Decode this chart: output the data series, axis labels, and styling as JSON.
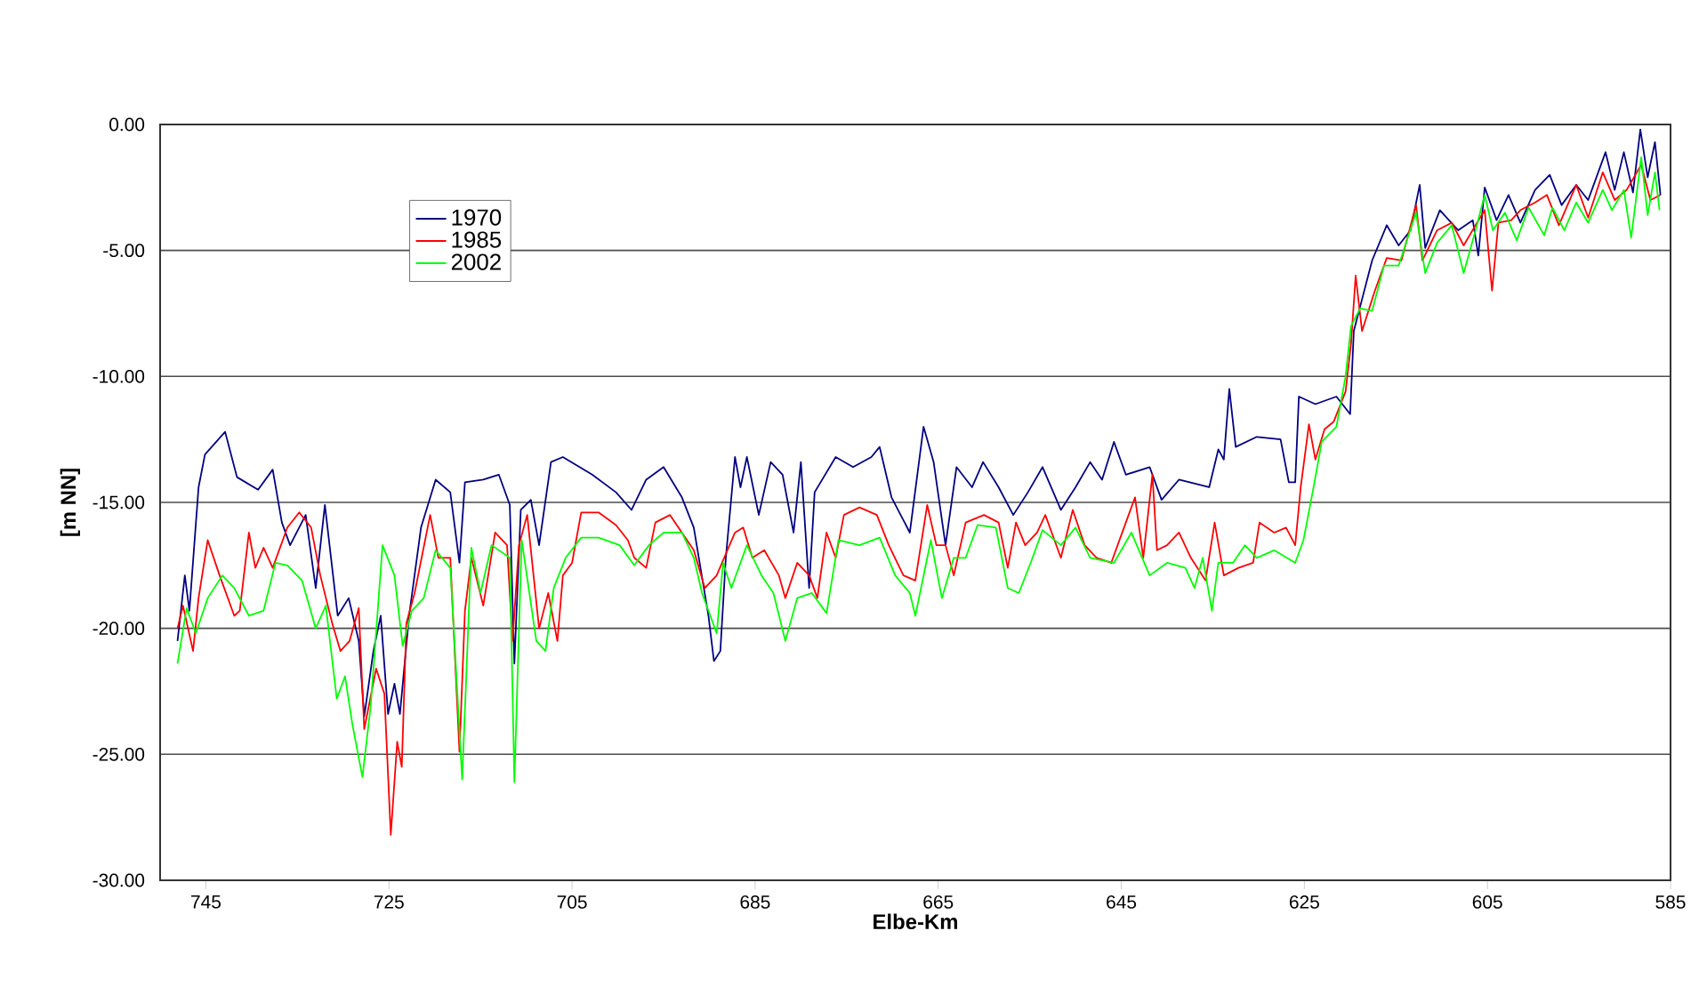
{
  "chart_data": {
    "type": "line",
    "xlabel": "Elbe-Km",
    "ylabel": "[m NN]",
    "xlim": [
      750,
      585
    ],
    "xticks": [
      745,
      725,
      705,
      685,
      665,
      645,
      625,
      605,
      585
    ],
    "ylim": [
      -30,
      0
    ],
    "yticks": [
      {
        "value": -30,
        "label": "-30.00"
      },
      {
        "value": -25,
        "label": "-25.00"
      },
      {
        "value": -20,
        "label": "-20.00"
      },
      {
        "value": -15,
        "label": "-15.00"
      },
      {
        "value": -10,
        "label": "-10.00"
      },
      {
        "value": -5,
        "label": "-5.00"
      },
      {
        "value": 0,
        "label": "0.00"
      }
    ],
    "grid": "y",
    "legend": "top left",
    "line_style": "solid",
    "series": [
      {
        "name": "1970",
        "color": "#000080",
        "x": [
          748.1,
          747.3,
          746.8,
          745.8,
          745.1,
          742.9,
          741.6,
          739.3,
          737.7,
          736.7,
          735.8,
          734.1,
          733.0,
          732.0,
          730.6,
          729.4,
          728.3,
          727.7,
          726.7,
          725.9,
          725.1,
          724.4,
          723.8,
          722.8,
          721.5,
          719.9,
          718.3,
          717.3,
          716.7,
          714.7,
          713.0,
          711.8,
          711.3,
          710.6,
          709.5,
          708.6,
          707.3,
          706.0,
          702.8,
          700.2,
          698.5,
          696.9,
          695.0,
          693.0,
          691.7,
          690.1,
          689.5,
          688.8,
          688.2,
          687.2,
          686.6,
          685.9,
          684.6,
          683.3,
          682.0,
          680.8,
          680.0,
          679.1,
          678.5,
          676.2,
          674.3,
          672.3,
          671.4,
          670.1,
          668.1,
          666.6,
          665.5,
          664.2,
          663.0,
          661.3,
          660.1,
          658.4,
          656.8,
          655.2,
          653.6,
          651.6,
          650.0,
          648.4,
          647.1,
          645.8,
          644.5,
          641.9,
          640.6,
          638.7,
          635.4,
          634.4,
          633.8,
          633.2,
          632.5,
          630.2,
          627.6,
          626.7,
          626.0,
          625.6,
          623.8,
          621.5,
          620.0,
          619.6,
          618.6,
          617.6,
          616.0,
          614.7,
          613.4,
          612.4,
          611.8,
          610.2,
          608.2,
          606.6,
          606.0,
          605.3,
          604.0,
          602.7,
          601.4,
          599.8,
          598.2,
          596.9,
          595.3,
          594.0,
          592.1,
          591.1,
          590.1,
          589.1,
          588.3,
          587.5,
          586.7,
          586.1
        ],
        "values": [
          -20.5,
          -17.9,
          -19.3,
          -14.4,
          -13.1,
          -12.2,
          -14.0,
          -14.5,
          -13.7,
          -15.8,
          -16.7,
          -15.5,
          -18.4,
          -15.1,
          -19.5,
          -18.8,
          -20.5,
          -23.5,
          -20.9,
          -19.5,
          -23.4,
          -22.2,
          -23.4,
          -19.5,
          -16.0,
          -14.1,
          -14.6,
          -17.4,
          -14.2,
          -14.1,
          -13.9,
          -15.1,
          -21.4,
          -15.3,
          -14.9,
          -16.7,
          -13.4,
          -13.2,
          -13.9,
          -14.6,
          -15.3,
          -14.1,
          -13.6,
          -14.8,
          -16.0,
          -19.5,
          -21.3,
          -20.9,
          -17.2,
          -13.2,
          -14.4,
          -13.2,
          -15.5,
          -13.4,
          -13.9,
          -16.2,
          -13.4,
          -18.4,
          -14.6,
          -13.2,
          -13.6,
          -13.2,
          -12.8,
          -14.8,
          -16.2,
          -12.0,
          -13.4,
          -16.7,
          -13.6,
          -14.4,
          -13.4,
          -14.4,
          -15.5,
          -14.6,
          -13.6,
          -15.3,
          -14.4,
          -13.4,
          -14.1,
          -12.6,
          -13.9,
          -13.6,
          -14.9,
          -14.1,
          -14.4,
          -12.9,
          -13.3,
          -10.5,
          -12.8,
          -12.4,
          -12.5,
          -14.2,
          -14.2,
          -10.8,
          -11.1,
          -10.8,
          -11.5,
          -8.2,
          -6.8,
          -5.4,
          -4.0,
          -4.8,
          -4.2,
          -2.4,
          -4.9,
          -3.4,
          -4.2,
          -3.8,
          -5.2,
          -2.5,
          -3.8,
          -2.8,
          -3.9,
          -2.6,
          -2.0,
          -3.2,
          -2.4,
          -3.0,
          -1.1,
          -2.6,
          -1.1,
          -2.7,
          -0.2,
          -2.1,
          -0.7,
          -2.8
        ]
      },
      {
        "name": "1985",
        "color": "#ff0000",
        "x": [
          748.1,
          747.5,
          746.4,
          745.8,
          744.8,
          743.5,
          741.9,
          741.3,
          740.3,
          739.6,
          738.7,
          737.7,
          736.1,
          734.8,
          733.5,
          732.5,
          731.2,
          730.3,
          729.3,
          728.3,
          727.7,
          726.4,
          725.5,
          724.8,
          724.1,
          723.6,
          723.1,
          722.2,
          720.5,
          719.6,
          718.3,
          717.3,
          716.7,
          716.0,
          714.7,
          713.4,
          712.1,
          711.5,
          710.8,
          709.9,
          708.6,
          707.6,
          706.6,
          706.0,
          705.0,
          704.0,
          702.1,
          700.2,
          698.9,
          698.2,
          696.9,
          695.9,
          694.3,
          693.0,
          691.7,
          690.5,
          689.2,
          687.2,
          686.3,
          685.3,
          684.0,
          682.4,
          681.7,
          680.4,
          679.1,
          678.2,
          677.2,
          676.2,
          675.3,
          673.6,
          671.7,
          670.4,
          668.8,
          667.5,
          666.2,
          665.2,
          664.2,
          663.3,
          662.0,
          660.0,
          658.4,
          657.4,
          656.5,
          655.5,
          654.2,
          653.3,
          651.6,
          650.3,
          649.0,
          647.7,
          646.1,
          644.5,
          643.5,
          642.6,
          641.6,
          641.1,
          640.0,
          638.7,
          637.4,
          635.8,
          634.8,
          633.8,
          632.2,
          630.6,
          629.9,
          628.3,
          627.0,
          626.0,
          625.4,
          624.5,
          623.8,
          622.8,
          621.8,
          620.5,
          619.9,
          619.4,
          618.7,
          617.3,
          616.0,
          614.4,
          612.8,
          612.1,
          610.5,
          608.9,
          607.6,
          606.3,
          605.3,
          604.5,
          603.8,
          602.4,
          601.4,
          599.8,
          598.5,
          597.2,
          595.3,
          594.0,
          592.4,
          591.1,
          589.8,
          588.2,
          587.2,
          586.1
        ],
        "values": [
          -20.0,
          -19.1,
          -20.9,
          -18.8,
          -16.5,
          -17.9,
          -19.5,
          -19.3,
          -16.2,
          -17.6,
          -16.8,
          -17.6,
          -16.0,
          -15.4,
          -16.0,
          -17.9,
          -19.8,
          -20.9,
          -20.5,
          -19.2,
          -24.0,
          -21.6,
          -22.6,
          -28.2,
          -24.5,
          -25.5,
          -19.8,
          -18.6,
          -15.5,
          -17.2,
          -17.2,
          -24.9,
          -19.3,
          -17.2,
          -19.1,
          -16.2,
          -16.7,
          -20.5,
          -16.7,
          -15.5,
          -20.0,
          -18.6,
          -20.5,
          -17.9,
          -17.4,
          -15.4,
          -15.4,
          -15.9,
          -16.5,
          -17.2,
          -17.6,
          -15.8,
          -15.5,
          -16.2,
          -16.9,
          -18.4,
          -17.9,
          -16.2,
          -16.0,
          -17.2,
          -16.9,
          -17.9,
          -18.8,
          -17.4,
          -17.9,
          -18.8,
          -16.2,
          -17.2,
          -15.5,
          -15.2,
          -15.5,
          -16.7,
          -17.9,
          -18.1,
          -15.1,
          -16.7,
          -16.7,
          -17.9,
          -15.8,
          -15.5,
          -15.8,
          -17.6,
          -15.8,
          -16.7,
          -16.2,
          -15.5,
          -17.2,
          -15.3,
          -16.7,
          -17.2,
          -17.4,
          -15.8,
          -14.8,
          -17.2,
          -13.9,
          -16.9,
          -16.7,
          -16.2,
          -17.2,
          -18.1,
          -15.8,
          -17.9,
          -17.6,
          -17.4,
          -15.8,
          -16.2,
          -16.0,
          -16.7,
          -14.4,
          -11.9,
          -13.3,
          -12.1,
          -11.8,
          -10.6,
          -8.7,
          -6.0,
          -8.2,
          -6.6,
          -5.3,
          -5.4,
          -3.2,
          -5.4,
          -4.2,
          -3.9,
          -4.8,
          -4.0,
          -3.4,
          -6.6,
          -3.9,
          -3.8,
          -3.4,
          -3.1,
          -2.8,
          -4.0,
          -2.4,
          -3.7,
          -1.9,
          -3.0,
          -2.6,
          -1.6,
          -3.0,
          -2.8
        ]
      },
      {
        "name": "2002",
        "color": "#00ff00",
        "x": [
          748.1,
          747.1,
          746.1,
          744.8,
          743.2,
          741.9,
          740.3,
          738.7,
          737.4,
          736.1,
          734.5,
          733.0,
          731.9,
          730.7,
          729.8,
          729.0,
          727.9,
          727.0,
          725.7,
          724.4,
          723.5,
          722.5,
          721.2,
          719.9,
          718.3,
          717.0,
          716.0,
          715.0,
          713.8,
          711.8,
          711.3,
          710.5,
          708.9,
          707.9,
          707.0,
          705.7,
          704.0,
          702.1,
          699.8,
          698.2,
          696.6,
          695.0,
          693.0,
          691.7,
          690.8,
          689.2,
          688.5,
          687.6,
          685.9,
          684.3,
          683.0,
          681.7,
          680.4,
          678.8,
          677.2,
          675.9,
          673.6,
          671.4,
          669.7,
          668.1,
          667.5,
          665.8,
          664.6,
          663.3,
          662.0,
          660.7,
          658.7,
          657.4,
          656.2,
          654.9,
          653.6,
          651.6,
          650.0,
          648.4,
          645.8,
          643.9,
          641.9,
          640.0,
          638.0,
          637.0,
          636.1,
          635.1,
          634.4,
          632.8,
          631.5,
          630.2,
          628.3,
          626.0,
          625.1,
          624.1,
          623.1,
          621.5,
          620.5,
          619.9,
          618.9,
          617.6,
          616.3,
          614.7,
          612.8,
          611.8,
          610.5,
          608.9,
          607.6,
          606.3,
          605.3,
          604.4,
          603.1,
          601.8,
          600.5,
          598.8,
          597.9,
          596.6,
          595.3,
          594.0,
          592.4,
          591.4,
          590.1,
          589.3,
          588.2,
          587.5,
          586.7,
          586.2
        ],
        "values": [
          -21.4,
          -19.2,
          -20.2,
          -18.8,
          -17.9,
          -18.4,
          -19.5,
          -19.3,
          -17.4,
          -17.5,
          -18.1,
          -20.0,
          -19.1,
          -22.8,
          -21.9,
          -23.8,
          -25.9,
          -23.1,
          -16.7,
          -17.9,
          -20.7,
          -19.3,
          -18.8,
          -16.9,
          -17.6,
          -26.0,
          -16.8,
          -18.6,
          -16.7,
          -17.2,
          -26.1,
          -16.5,
          -20.5,
          -20.9,
          -18.4,
          -17.2,
          -16.4,
          -16.4,
          -16.7,
          -17.5,
          -16.7,
          -16.2,
          -16.2,
          -17.2,
          -18.6,
          -20.2,
          -17.4,
          -18.4,
          -16.7,
          -17.9,
          -18.6,
          -20.5,
          -18.8,
          -18.6,
          -19.4,
          -16.5,
          -16.7,
          -16.4,
          -17.9,
          -18.6,
          -19.5,
          -16.5,
          -18.8,
          -17.2,
          -17.2,
          -15.9,
          -16.0,
          -18.4,
          -18.6,
          -17.4,
          -16.1,
          -16.7,
          -16.0,
          -17.2,
          -17.4,
          -16.2,
          -17.9,
          -17.4,
          -17.6,
          -18.4,
          -17.2,
          -19.3,
          -17.4,
          -17.4,
          -16.7,
          -17.2,
          -16.9,
          -17.4,
          -16.5,
          -14.6,
          -12.6,
          -12.0,
          -10.0,
          -8.0,
          -7.3,
          -7.4,
          -5.6,
          -5.6,
          -3.5,
          -5.9,
          -4.7,
          -4.0,
          -5.9,
          -4.2,
          -2.8,
          -4.2,
          -3.5,
          -4.6,
          -3.3,
          -4.4,
          -3.3,
          -4.2,
          -3.1,
          -3.9,
          -2.6,
          -3.4,
          -2.6,
          -4.5,
          -1.3,
          -3.6,
          -1.9,
          -3.4
        ]
      }
    ]
  }
}
